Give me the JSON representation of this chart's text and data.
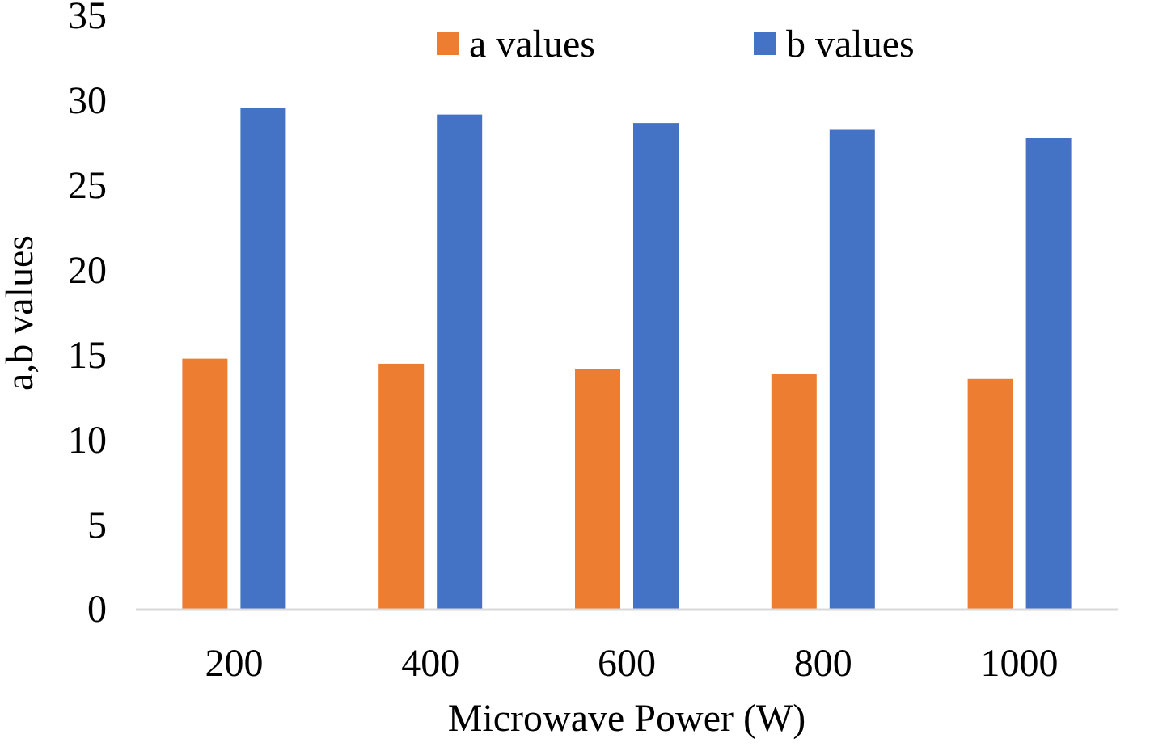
{
  "chart_data": {
    "type": "bar",
    "xlabel": "Microwave Power (W)",
    "ylabel": "a,b values",
    "categories": [
      "200",
      "400",
      "600",
      "800",
      "1000"
    ],
    "series": [
      {
        "name": "a values",
        "color": "#ed7d31",
        "values": [
          14.8,
          14.5,
          14.2,
          13.9,
          13.6
        ]
      },
      {
        "name": "b values",
        "color": "#4472c4",
        "values": [
          29.6,
          29.2,
          28.7,
          28.3,
          27.8
        ]
      }
    ],
    "ylim": [
      0,
      35
    ],
    "yticks": [
      0,
      5,
      10,
      15,
      20,
      25,
      30,
      35
    ],
    "grid": false,
    "legend": "top"
  }
}
